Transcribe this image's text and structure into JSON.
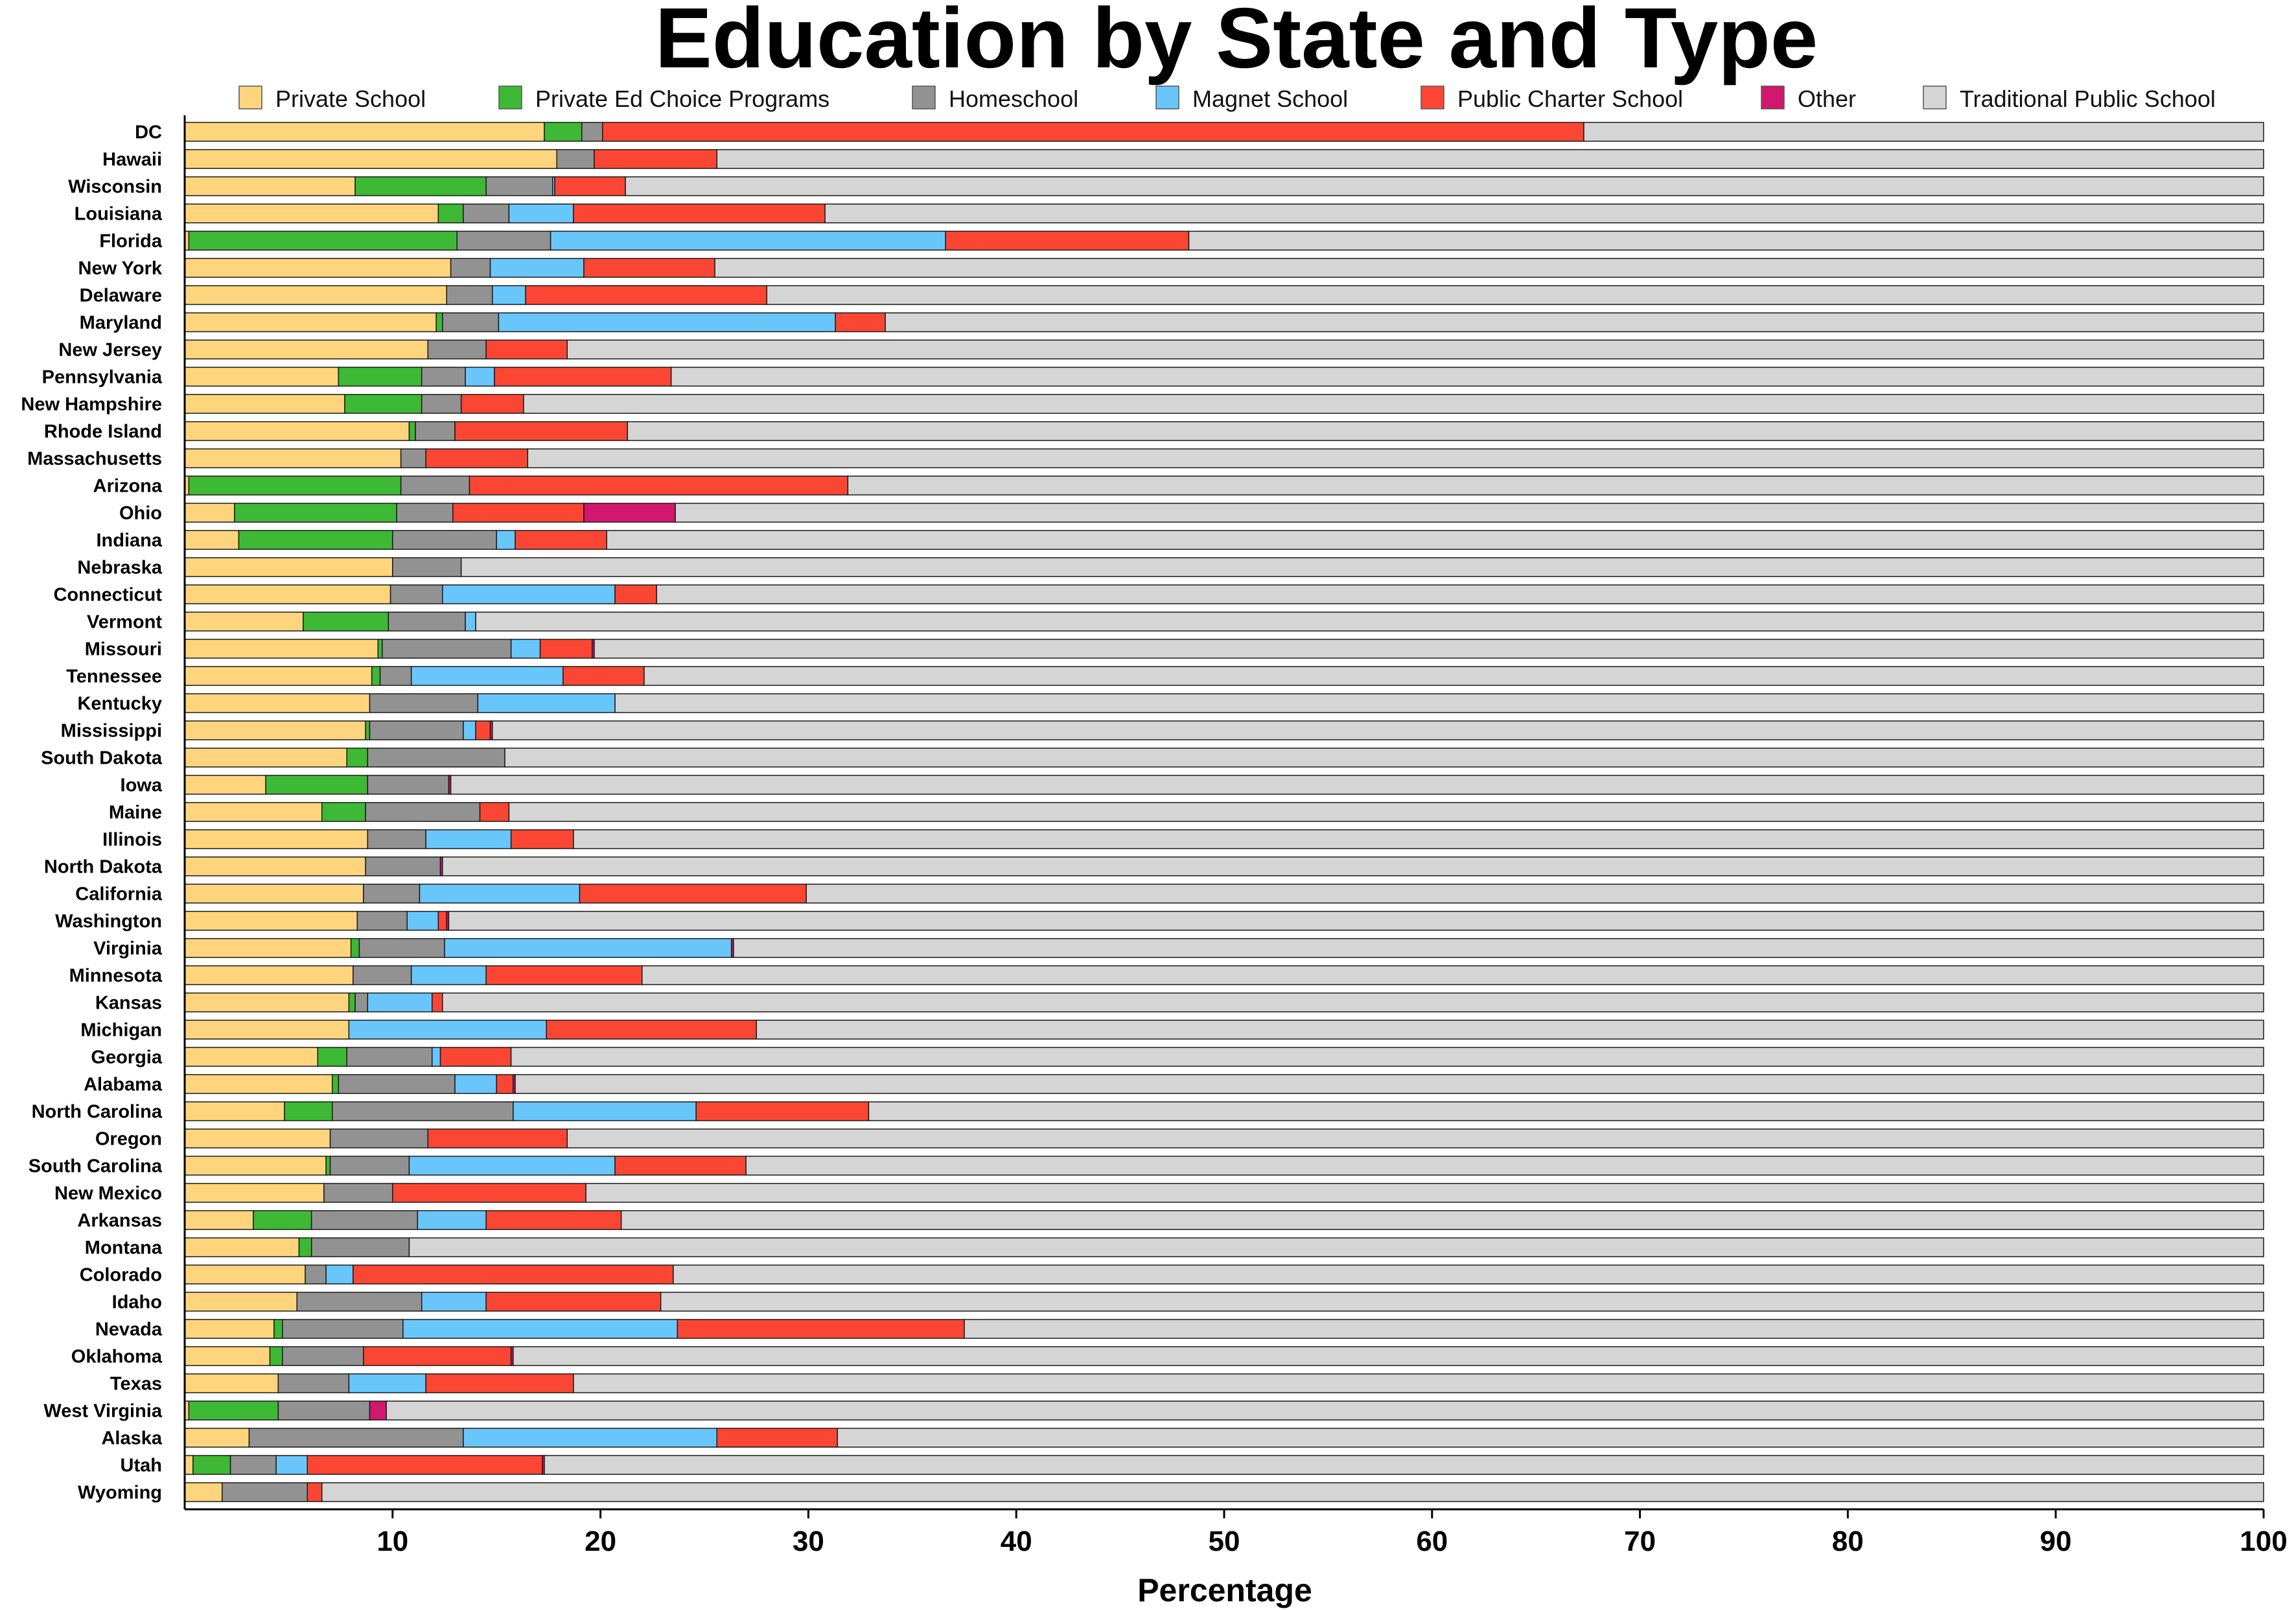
{
  "chart_data": {
    "type": "bar",
    "orientation": "horizontal",
    "stacked": true,
    "title": "Education by State and Type",
    "xlabel": "Percentage",
    "ylabel": "",
    "xlim": [
      0,
      100
    ],
    "xticks": [
      10,
      20,
      30,
      40,
      50,
      60,
      70,
      80,
      90,
      100
    ],
    "legend_position": "top",
    "grid": false,
    "series": [
      {
        "name": "Private School",
        "color": "#FED57C"
      },
      {
        "name": "Private  Ed Choice Programs",
        "color": "#3DB935"
      },
      {
        "name": "Homeschool",
        "color": "#929292"
      },
      {
        "name": "Magnet School",
        "color": "#69C6FB"
      },
      {
        "name": "Public Charter School",
        "color": "#FB4634"
      },
      {
        "name": "Other",
        "color": "#D2176E"
      },
      {
        "name": "Traditional Public School",
        "color": "#D5D5D5"
      }
    ],
    "categories": [
      "DC",
      "Hawaii",
      "Wisconsin",
      "Louisiana",
      "Florida",
      "New York",
      "Delaware",
      "Maryland",
      "New Jersey",
      "Pennsylvania",
      "New Hampshire",
      "Rhode Island",
      "Massachusetts",
      "Arizona",
      "Ohio",
      "Indiana",
      "Nebraska",
      "Connecticut",
      "Vermont",
      "Missouri",
      "Tennessee",
      "Kentucky",
      "Mississippi",
      "South Dakota",
      "Iowa",
      "Maine",
      "Illinois",
      "North Dakota",
      "California",
      "Washington",
      "Virginia",
      "Minnesota",
      "Kansas",
      "Michigan",
      "Georgia",
      "Alabama",
      "North Carolina",
      "Oregon",
      "South Carolina",
      "New Mexico",
      "Arkansas",
      "Montana",
      "Colorado",
      "Idaho",
      "Nevada",
      "Oklahoma",
      "Texas",
      "West Virginia",
      "Alaska",
      "Utah",
      "Wyoming"
    ],
    "data": [
      [
        17.3,
        1.8,
        1.0,
        0.0,
        47.2,
        0.0,
        32.7
      ],
      [
        17.9,
        0.0,
        1.8,
        0.0,
        5.9,
        0.0,
        74.4
      ],
      [
        8.2,
        6.3,
        3.2,
        0.1,
        3.4,
        0.0,
        78.8
      ],
      [
        12.2,
        1.2,
        2.2,
        3.1,
        12.1,
        0.0,
        69.2
      ],
      [
        0.2,
        12.9,
        4.5,
        19.0,
        11.7,
        0.0,
        51.7
      ],
      [
        12.8,
        0.0,
        1.9,
        4.5,
        6.3,
        0.0,
        74.5
      ],
      [
        12.6,
        0.0,
        2.2,
        1.6,
        11.6,
        0.0,
        72.0
      ],
      [
        12.1,
        0.3,
        2.7,
        16.2,
        2.4,
        0.0,
        66.3
      ],
      [
        11.7,
        0.0,
        2.8,
        0.0,
        3.9,
        0.0,
        81.6
      ],
      [
        7.4,
        4.0,
        2.1,
        1.4,
        8.5,
        0.0,
        76.6
      ],
      [
        7.7,
        3.7,
        1.9,
        0.0,
        3.0,
        0.0,
        83.7
      ],
      [
        10.8,
        0.3,
        1.9,
        0.0,
        8.3,
        0.0,
        78.7
      ],
      [
        10.4,
        0.0,
        1.2,
        0.0,
        4.9,
        0.0,
        83.5
      ],
      [
        0.2,
        10.2,
        3.3,
        0.0,
        18.2,
        0.0,
        68.1
      ],
      [
        2.4,
        7.8,
        2.7,
        0.0,
        6.3,
        4.4,
        76.4
      ],
      [
        2.6,
        7.4,
        5.0,
        0.9,
        4.4,
        0.0,
        79.7
      ],
      [
        10.0,
        0.0,
        3.3,
        0.0,
        0.0,
        0.0,
        86.7
      ],
      [
        9.9,
        0.0,
        2.5,
        8.3,
        2.0,
        0.0,
        77.3
      ],
      [
        5.7,
        4.1,
        3.7,
        0.5,
        0.0,
        0.0,
        86.0
      ],
      [
        9.3,
        0.2,
        6.2,
        1.4,
        2.5,
        0.1,
        80.3
      ],
      [
        9.0,
        0.4,
        1.5,
        7.3,
        3.9,
        0.0,
        77.9
      ],
      [
        8.9,
        0.0,
        5.2,
        6.6,
        0.0,
        0.0,
        79.3
      ],
      [
        8.7,
        0.2,
        4.5,
        0.6,
        0.7,
        0.1,
        85.2
      ],
      [
        7.8,
        1.0,
        6.6,
        0.0,
        0.0,
        0.0,
        84.6
      ],
      [
        3.9,
        4.9,
        3.9,
        0.0,
        0.0,
        0.1,
        87.2
      ],
      [
        6.6,
        2.1,
        5.5,
        0.0,
        1.4,
        0.0,
        84.4
      ],
      [
        8.8,
        0.0,
        2.8,
        4.1,
        3.0,
        0.0,
        81.3
      ],
      [
        8.7,
        0.0,
        3.6,
        0.0,
        0.0,
        0.1,
        87.6
      ],
      [
        8.6,
        0.0,
        2.7,
        7.7,
        10.9,
        0.0,
        70.1
      ],
      [
        8.3,
        0.0,
        2.4,
        1.5,
        0.4,
        0.1,
        87.3
      ],
      [
        8.0,
        0.4,
        4.1,
        13.8,
        0.0,
        0.1,
        73.6
      ],
      [
        8.1,
        0.0,
        2.8,
        3.6,
        7.5,
        0.0,
        78.0
      ],
      [
        7.9,
        0.3,
        0.6,
        3.1,
        0.5,
        0.0,
        87.6
      ],
      [
        7.9,
        0.0,
        0.0,
        9.5,
        10.1,
        0.0,
        72.5
      ],
      [
        6.4,
        1.4,
        4.1,
        0.4,
        3.4,
        0.0,
        84.3
      ],
      [
        7.1,
        0.3,
        5.6,
        2.0,
        0.8,
        0.1,
        84.1
      ],
      [
        4.8,
        2.3,
        8.7,
        8.8,
        8.3,
        0.0,
        67.1
      ],
      [
        7.0,
        0.0,
        4.7,
        0.0,
        6.7,
        0.0,
        81.6
      ],
      [
        6.8,
        0.2,
        3.8,
        9.9,
        6.3,
        0.0,
        73.0
      ],
      [
        6.7,
        0.0,
        3.3,
        0.0,
        9.3,
        0.0,
        80.7
      ],
      [
        3.3,
        2.8,
        5.1,
        3.3,
        6.5,
        0.0,
        79.0
      ],
      [
        5.5,
        0.6,
        4.7,
        0.0,
        0.0,
        0.0,
        89.2
      ],
      [
        5.8,
        0.0,
        1.0,
        1.3,
        15.4,
        0.0,
        76.5
      ],
      [
        5.4,
        0.0,
        6.0,
        3.1,
        8.4,
        0.0,
        77.1
      ],
      [
        4.3,
        0.4,
        5.8,
        13.2,
        13.8,
        0.0,
        62.5
      ],
      [
        4.1,
        0.6,
        3.9,
        0.0,
        7.1,
        0.1,
        84.2
      ],
      [
        4.5,
        0.0,
        3.4,
        3.7,
        7.1,
        0.0,
        81.3
      ],
      [
        0.2,
        4.3,
        4.4,
        0.0,
        0.0,
        0.8,
        90.3
      ],
      [
        3.1,
        0.0,
        10.3,
        12.2,
        5.8,
        0.0,
        68.6
      ],
      [
        0.4,
        1.8,
        2.2,
        1.5,
        11.3,
        0.1,
        82.7
      ],
      [
        1.8,
        0.0,
        4.1,
        0.0,
        0.7,
        0.0,
        93.4
      ]
    ]
  }
}
